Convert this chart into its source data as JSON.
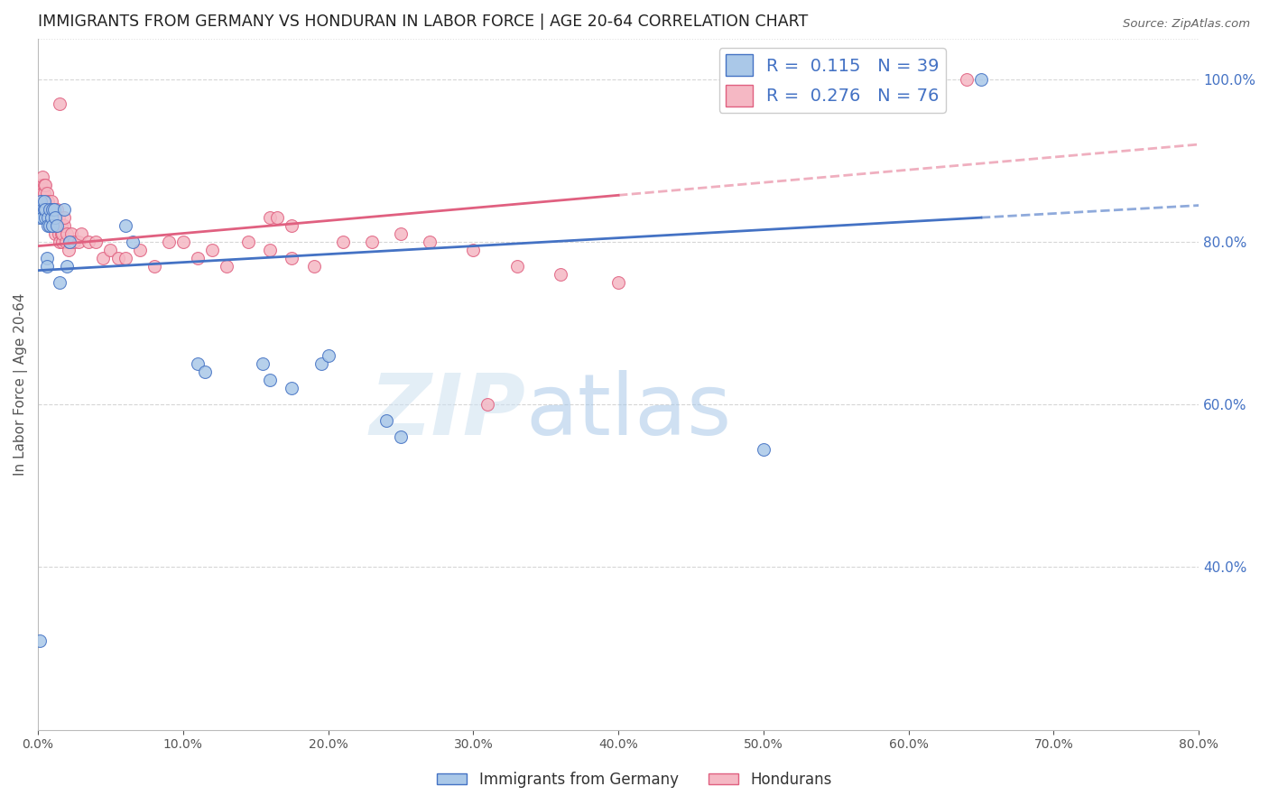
{
  "title": "IMMIGRANTS FROM GERMANY VS HONDURAN IN LABOR FORCE | AGE 20-64 CORRELATION CHART",
  "source": "Source: ZipAtlas.com",
  "ylabel": "In Labor Force | Age 20-64",
  "legend_label_blue": "Immigrants from Germany",
  "legend_label_pink": "Hondurans",
  "R_blue": 0.115,
  "N_blue": 39,
  "R_pink": 0.276,
  "N_pink": 76,
  "blue_color": "#aac8e8",
  "pink_color": "#f5b8c4",
  "blue_line_color": "#4472c4",
  "pink_line_color": "#e06080",
  "background_color": "#ffffff",
  "grid_color": "#cccccc",
  "xlim": [
    0.0,
    0.8
  ],
  "ylim": [
    0.2,
    1.05
  ],
  "blue_x": [
    0.001,
    0.002,
    0.002,
    0.003,
    0.003,
    0.004,
    0.004,
    0.005,
    0.005,
    0.006,
    0.006,
    0.007,
    0.007,
    0.008,
    0.008,
    0.009,
    0.01,
    0.01,
    0.011,
    0.012,
    0.013,
    0.015,
    0.018,
    0.02,
    0.022,
    0.06,
    0.065,
    0.11,
    0.115,
    0.155,
    0.16,
    0.175,
    0.195,
    0.2,
    0.24,
    0.25,
    0.5,
    0.001,
    0.65
  ],
  "blue_y": [
    0.83,
    0.84,
    0.85,
    0.84,
    0.83,
    0.84,
    0.85,
    0.83,
    0.84,
    0.78,
    0.77,
    0.83,
    0.82,
    0.84,
    0.82,
    0.83,
    0.84,
    0.82,
    0.84,
    0.83,
    0.82,
    0.75,
    0.84,
    0.77,
    0.8,
    0.82,
    0.8,
    0.65,
    0.64,
    0.65,
    0.63,
    0.62,
    0.65,
    0.66,
    0.58,
    0.56,
    0.545,
    0.31,
    1.0
  ],
  "pink_x": [
    0.001,
    0.001,
    0.002,
    0.002,
    0.003,
    0.003,
    0.004,
    0.004,
    0.005,
    0.005,
    0.006,
    0.006,
    0.007,
    0.007,
    0.008,
    0.008,
    0.009,
    0.009,
    0.01,
    0.01,
    0.011,
    0.011,
    0.012,
    0.012,
    0.013,
    0.013,
    0.014,
    0.014,
    0.015,
    0.015,
    0.016,
    0.016,
    0.017,
    0.017,
    0.018,
    0.018,
    0.019,
    0.02,
    0.021,
    0.022,
    0.023,
    0.025,
    0.028,
    0.03,
    0.035,
    0.04,
    0.045,
    0.05,
    0.055,
    0.06,
    0.07,
    0.08,
    0.09,
    0.1,
    0.11,
    0.12,
    0.13,
    0.145,
    0.16,
    0.175,
    0.19,
    0.21,
    0.23,
    0.25,
    0.27,
    0.3,
    0.33,
    0.36,
    0.4,
    0.012,
    0.64,
    0.015,
    0.16,
    0.165,
    0.175,
    0.31
  ],
  "pink_y": [
    0.84,
    0.86,
    0.85,
    0.87,
    0.86,
    0.88,
    0.87,
    0.86,
    0.85,
    0.87,
    0.86,
    0.84,
    0.85,
    0.83,
    0.84,
    0.82,
    0.84,
    0.85,
    0.83,
    0.84,
    0.82,
    0.83,
    0.81,
    0.83,
    0.84,
    0.82,
    0.83,
    0.81,
    0.82,
    0.8,
    0.81,
    0.82,
    0.8,
    0.81,
    0.82,
    0.83,
    0.8,
    0.81,
    0.79,
    0.8,
    0.81,
    0.8,
    0.8,
    0.81,
    0.8,
    0.8,
    0.78,
    0.79,
    0.78,
    0.78,
    0.79,
    0.77,
    0.8,
    0.8,
    0.78,
    0.79,
    0.77,
    0.8,
    0.79,
    0.78,
    0.77,
    0.8,
    0.8,
    0.81,
    0.8,
    0.79,
    0.77,
    0.76,
    0.75,
    0.82,
    1.0,
    0.97,
    0.83,
    0.83,
    0.82,
    0.6
  ],
  "watermark_zip": "ZIP",
  "watermark_atlas": "atlas",
  "marker_size": 100
}
